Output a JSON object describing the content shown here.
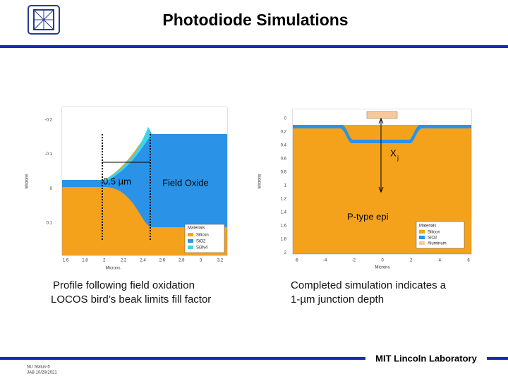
{
  "header": {
    "title": "Photodiode Simulations"
  },
  "left_plot": {
    "x_axis_label": "Microns",
    "y_axis_label": "Microns",
    "x_ticks": [
      "1.6",
      "1.8",
      "2",
      "2.2",
      "2.4",
      "2.6",
      "2.8",
      "3",
      "3.2"
    ],
    "y_ticks": [
      "-0.2",
      "-0.1",
      "0",
      "0.1"
    ],
    "legend": {
      "title": "Materials",
      "items": [
        "Silicon",
        "SiO2",
        "Si3N4"
      ]
    },
    "annotations": {
      "width": "0.5 µm",
      "oxide": "Field Oxide"
    },
    "caption": [
      "Profile following field oxidation",
      "LOCOS bird’s beak limits fill factor"
    ]
  },
  "right_plot": {
    "x_axis_label": "Microns",
    "y_axis_label": "Microns",
    "x_ticks": [
      "-6",
      "-4",
      "-2",
      "0",
      "2",
      "4",
      "6"
    ],
    "y_ticks": [
      "0",
      "0.2",
      "0.4",
      "0.6",
      "0.8",
      "1",
      "1.2",
      "1.4",
      "1.6",
      "1.8",
      "2"
    ],
    "legend": {
      "title": "Materials",
      "items": [
        "Silicon",
        "SiO2",
        "Aluminum"
      ]
    },
    "annotations": {
      "depth": "X",
      "depth_sub": "j",
      "region": "P-type epi"
    },
    "caption": [
      "Completed simulation indicates a",
      "1-µm junction depth"
    ]
  },
  "footer": {
    "organization": "MIT Lincoln Laboratory",
    "note": [
      "NU Status-5",
      "JAB 10/29/2021"
    ]
  }
}
